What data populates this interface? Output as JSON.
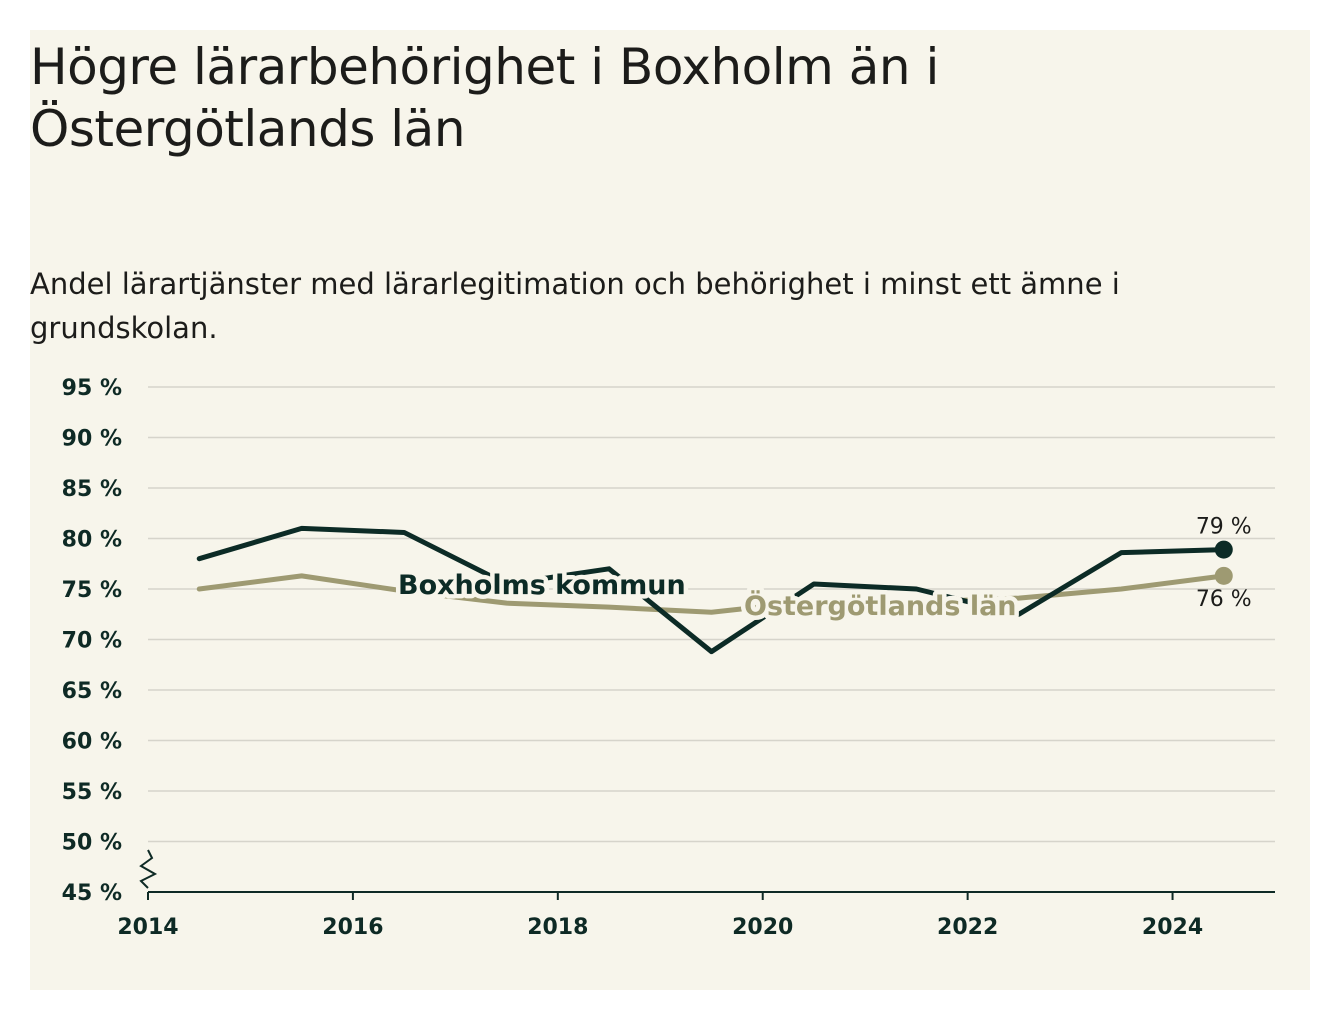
{
  "chart_data": {
    "type": "line",
    "title": "Högre lärarbehörighet i Boxholm än i Östergötlands län",
    "subtitle": "Andel lärartjänster med lärarlegitimation och behörighet i minst ett ämne i grundskolan.",
    "x": [
      2014.5,
      2015.5,
      2016.5,
      2017.5,
      2018.5,
      2019.5,
      2020.5,
      2021.5,
      2022.5,
      2023.5,
      2024.5
    ],
    "series": [
      {
        "name": "Boxholms kommun",
        "color": "#0c2b26",
        "values": [
          78.0,
          81.0,
          80.6,
          75.5,
          77.0,
          68.8,
          75.5,
          75.0,
          72.5,
          78.6,
          78.9
        ],
        "end_label": "79 %"
      },
      {
        "name": "Östergötlands län",
        "color": "#9e9a72",
        "values": [
          75.0,
          76.3,
          74.8,
          73.6,
          73.2,
          72.7,
          73.8,
          73.7,
          74.1,
          75.0,
          76.3
        ],
        "end_label": "76 %"
      }
    ],
    "ylim": [
      45,
      95
    ],
    "yticks": [
      45,
      50,
      55,
      60,
      65,
      70,
      75,
      80,
      85,
      90,
      95
    ],
    "ytick_labels": [
      "45 %",
      "50 %",
      "55 %",
      "60 %",
      "65 %",
      "70 %",
      "75 %",
      "80 %",
      "85 %",
      "90 %",
      "95 %"
    ],
    "xlim": [
      2014,
      2025
    ],
    "xticks": [
      2014,
      2016,
      2018,
      2020,
      2022,
      2024
    ],
    "xtick_labels": [
      "2014",
      "2016",
      "2018",
      "2020",
      "2022",
      "2024"
    ],
    "grid": true,
    "axis_break": true,
    "legend": "inline"
  }
}
